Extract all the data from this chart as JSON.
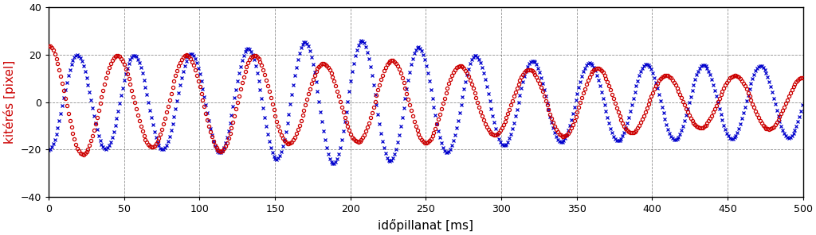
{
  "title": "",
  "xlabel": "időpillanat [ms]",
  "ylabel": "kitérés [pixel]",
  "xlim": [
    0,
    500
  ],
  "ylim": [
    -40,
    40
  ],
  "yticks": [
    -40,
    -20,
    0,
    20,
    40
  ],
  "xticks": [
    0,
    50,
    100,
    150,
    200,
    250,
    300,
    350,
    400,
    450,
    500
  ],
  "red_color": "#CC0000",
  "blue_color": "#0000CC",
  "red_freq": 0.022,
  "blue_freq": 0.0265,
  "red_amp_start": 22,
  "red_amp_end": 10,
  "blue_amp_start": 20,
  "blue_amp_peak": 29,
  "blue_amp_peak_t": 200,
  "blue_amp_end": 20,
  "red_phase": 1.55,
  "blue_phase": -1.57,
  "n_points": 1000,
  "marker_size": 3.0,
  "marker_interval": 2,
  "background_color": "#ffffff",
  "grid_color": "#444444",
  "grid_style": "--",
  "grid_linewidth": 0.6,
  "grid_alpha": 0.6,
  "ylabel_color": "#CC0000",
  "ylabel_fontsize": 11,
  "xlabel_fontsize": 11,
  "tick_labelsize": 9,
  "spine_linewidth": 1.0
}
